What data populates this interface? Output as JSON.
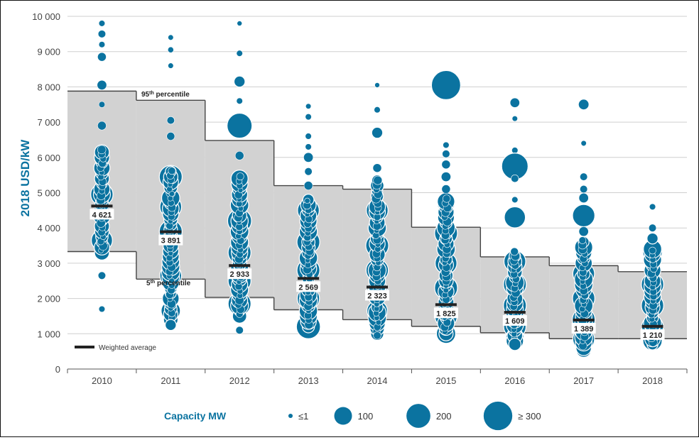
{
  "chart_data": {
    "type": "scatter",
    "ylabel": "2018 USD/kW",
    "ylim": [
      0,
      10000
    ],
    "y_ticks": [
      "0",
      "1 000",
      "2 000",
      "3 000",
      "4 000",
      "5 000",
      "6 000",
      "7 000",
      "8 000",
      "9 000",
      "10 000"
    ],
    "y_tick_values": [
      0,
      1000,
      2000,
      3000,
      4000,
      5000,
      6000,
      7000,
      8000,
      9000,
      10000
    ],
    "categories": [
      "2010",
      "2011",
      "2012",
      "2013",
      "2014",
      "2015",
      "2016",
      "2017",
      "2018"
    ],
    "percentile_95": [
      7880,
      7620,
      6480,
      5200,
      5100,
      4020,
      3180,
      2930,
      2760
    ],
    "percentile_5": [
      3330,
      2550,
      2030,
      1680,
      1400,
      1210,
      1030,
      860,
      860
    ],
    "weighted_average": [
      4621,
      3891,
      2933,
      2569,
      2323,
      1825,
      1609,
      1389,
      1210
    ],
    "weighted_average_labels": [
      "4 621",
      "3 891",
      "2 933",
      "2 569",
      "2 323",
      "1 825",
      "1 609",
      "1 389",
      "1 210"
    ],
    "annotations": {
      "p95_base": "95",
      "p95_sup": "th",
      "p95_rest": " percentile",
      "p5_base": "5",
      "p5_sup": "th",
      "p5_rest": " percentile",
      "weighted_average": "Weighted average"
    },
    "size_legend": {
      "title": "Capacity MW",
      "entries": [
        {
          "label": "≤1",
          "mw": 1
        },
        {
          "label": "100",
          "mw": 100
        },
        {
          "label": "200",
          "mw": 200
        },
        {
          "label": "≥ 300",
          "mw": 300
        }
      ]
    },
    "bubble_ranges": [
      {
        "lo": 3300,
        "hi": 6200,
        "extra": [
          [
            9800,
            5
          ],
          [
            9500,
            10
          ],
          [
            9200,
            5
          ],
          [
            8850,
            15
          ],
          [
            8050,
            20
          ],
          [
            7500,
            5
          ],
          [
            6900,
            15
          ],
          [
            2650,
            10
          ],
          [
            1700,
            5
          ]
        ],
        "big": [
          [
            4950,
            170
          ],
          [
            3650,
            150
          ],
          [
            5650,
            60
          ]
        ]
      },
      {
        "lo": 1400,
        "hi": 5600,
        "extra": [
          [
            9400,
            3
          ],
          [
            9050,
            4
          ],
          [
            8600,
            3
          ],
          [
            7050,
            10
          ],
          [
            6600,
            12
          ],
          [
            1250,
            30
          ]
        ],
        "big": [
          [
            5450,
            180
          ],
          [
            4600,
            160
          ],
          [
            3900,
            180
          ],
          [
            2650,
            160
          ],
          [
            1650,
            120
          ]
        ]
      },
      {
        "lo": 1500,
        "hi": 5400,
        "extra": [
          [
            9800,
            2
          ],
          [
            8950,
            5
          ],
          [
            8150,
            30
          ],
          [
            7600,
            5
          ],
          [
            6900,
            220
          ],
          [
            6050,
            15
          ],
          [
            1100,
            10
          ]
        ],
        "big": [
          [
            4200,
            200
          ],
          [
            3300,
            180
          ],
          [
            2500,
            180
          ],
          [
            1850,
            180
          ]
        ]
      },
      {
        "lo": 1200,
        "hi": 4800,
        "extra": [
          [
            7450,
            3
          ],
          [
            7150,
            5
          ],
          [
            6600,
            5
          ],
          [
            6300,
            5
          ],
          [
            6000,
            20
          ],
          [
            5600,
            10
          ],
          [
            5200,
            15
          ]
        ],
        "big": [
          [
            4500,
            160
          ],
          [
            3600,
            180
          ],
          [
            2800,
            180
          ],
          [
            2000,
            170
          ],
          [
            1200,
            200
          ]
        ]
      },
      {
        "lo": 1000,
        "hi": 5400,
        "extra": [
          [
            8050,
            2
          ],
          [
            7350,
            5
          ],
          [
            6700,
            30
          ],
          [
            5700,
            15
          ],
          [
            950,
            10
          ]
        ],
        "big": [
          [
            4500,
            160
          ],
          [
            3500,
            180
          ],
          [
            2800,
            170
          ],
          [
            2150,
            160
          ],
          [
            1650,
            140
          ]
        ]
      },
      {
        "lo": 1000,
        "hi": 4800,
        "extra": [
          [
            8050,
            310
          ],
          [
            6350,
            5
          ],
          [
            6100,
            10
          ],
          [
            5800,
            15
          ],
          [
            5450,
            20
          ],
          [
            5100,
            15
          ]
        ],
        "big": [
          [
            4700,
            100
          ],
          [
            3850,
            180
          ],
          [
            3000,
            160
          ],
          [
            2300,
            180
          ],
          [
            1500,
            170
          ],
          [
            1000,
            120
          ]
        ]
      },
      {
        "lo": 800,
        "hi": 3300,
        "extra": [
          [
            7550,
            20
          ],
          [
            7100,
            3
          ],
          [
            6200,
            5
          ],
          [
            5750,
            250
          ],
          [
            5400,
            10
          ],
          [
            4800,
            5
          ],
          [
            4300,
            150
          ],
          [
            700,
            40
          ]
        ],
        "big": [
          [
            3050,
            160
          ],
          [
            2400,
            180
          ],
          [
            1800,
            180
          ],
          [
            1200,
            170
          ],
          [
            900,
            100
          ]
        ]
      },
      {
        "lo": 600,
        "hi": 3600,
        "extra": [
          [
            7500,
            25
          ],
          [
            6400,
            3
          ],
          [
            5450,
            10
          ],
          [
            5100,
            10
          ],
          [
            4850,
            20
          ],
          [
            4350,
            170
          ],
          [
            3900,
            20
          ]
        ],
        "big": [
          [
            2700,
            160
          ],
          [
            2000,
            170
          ],
          [
            1400,
            180
          ],
          [
            850,
            160
          ],
          [
            550,
            70
          ]
        ]
      },
      {
        "lo": 700,
        "hi": 3400,
        "extra": [
          [
            4600,
            5
          ],
          [
            4000,
            10
          ],
          [
            3700,
            30
          ]
        ],
        "big": [
          [
            3300,
            120
          ],
          [
            2400,
            170
          ],
          [
            1800,
            170
          ],
          [
            1200,
            160
          ],
          [
            800,
            120
          ]
        ]
      }
    ]
  }
}
